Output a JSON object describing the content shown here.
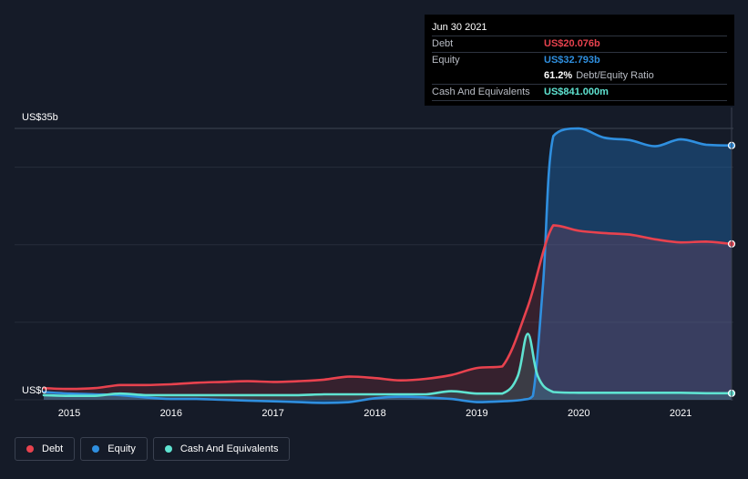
{
  "tooltip": {
    "date": "Jun 30 2021",
    "debt_label": "Debt",
    "debt_value": "US$20.076b",
    "equity_label": "Equity",
    "equity_value": "US$32.793b",
    "ratio_value": "61.2%",
    "ratio_label": "Debt/Equity Ratio",
    "cash_label": "Cash And Equivalents",
    "cash_value": "US$841.000m"
  },
  "legend": [
    {
      "label": "Debt",
      "color": "#e8424e"
    },
    {
      "label": "Equity",
      "color": "#2f8fdf"
    },
    {
      "label": "Cash And Equivalents",
      "color": "#5fe3d1"
    }
  ],
  "chart_data": {
    "type": "area",
    "y_axis_labels": [
      "US$35b",
      "US$0"
    ],
    "ylim": [
      0,
      35
    ],
    "xlim": [
      2014.75,
      2021.5
    ],
    "x_ticks": [
      {
        "label": "2015",
        "value": 2015
      },
      {
        "label": "2016",
        "value": 2016
      },
      {
        "label": "2017",
        "value": 2017
      },
      {
        "label": "2018",
        "value": 2018
      },
      {
        "label": "2019",
        "value": 2019
      },
      {
        "label": "2020",
        "value": 2020
      },
      {
        "label": "2021",
        "value": 2021
      }
    ],
    "gridlines": [
      0,
      10,
      20,
      30,
      35
    ],
    "series": [
      {
        "name": "Debt",
        "color": "#e8424e",
        "x": [
          2014.75,
          2015.0,
          2015.25,
          2015.5,
          2015.75,
          2016.0,
          2016.25,
          2016.5,
          2016.75,
          2017.0,
          2017.25,
          2017.5,
          2017.75,
          2018.0,
          2018.25,
          2018.5,
          2018.75,
          2019.0,
          2019.25,
          2019.5,
          2019.75,
          2020.0,
          2020.25,
          2020.5,
          2020.75,
          2021.0,
          2021.25,
          2021.5
        ],
        "values": [
          1.5,
          1.4,
          1.5,
          1.9,
          1.9,
          2.0,
          2.2,
          2.3,
          2.4,
          2.3,
          2.4,
          2.6,
          3.0,
          2.8,
          2.5,
          2.7,
          3.2,
          4.1,
          4.3,
          12.0,
          22.5,
          21.8,
          21.5,
          21.3,
          20.7,
          20.3,
          20.4,
          20.1
        ]
      },
      {
        "name": "Equity",
        "color": "#2f8fdf",
        "x": [
          2014.75,
          2015.0,
          2015.25,
          2015.5,
          2015.75,
          2016.0,
          2016.25,
          2016.5,
          2016.75,
          2017.0,
          2017.25,
          2017.5,
          2017.75,
          2018.0,
          2018.25,
          2018.5,
          2018.75,
          2019.0,
          2019.25,
          2019.45,
          2019.55,
          2019.65,
          2019.75,
          2020.0,
          2020.25,
          2020.5,
          2020.75,
          2021.0,
          2021.25,
          2021.5
        ],
        "values": [
          1.0,
          0.8,
          0.7,
          0.6,
          0.3,
          0.1,
          0.1,
          0.0,
          -0.1,
          -0.2,
          -0.3,
          -0.4,
          -0.3,
          0.2,
          0.4,
          0.3,
          0.1,
          -0.3,
          -0.2,
          0.0,
          0.5,
          15.0,
          34.0,
          35.0,
          33.8,
          33.5,
          32.7,
          33.6,
          32.9,
          32.8
        ]
      },
      {
        "name": "Cash And Equivalents",
        "color": "#5fe3d1",
        "x": [
          2014.75,
          2015.0,
          2015.25,
          2015.5,
          2015.75,
          2016.0,
          2016.25,
          2016.5,
          2016.75,
          2017.0,
          2017.25,
          2017.5,
          2017.75,
          2018.0,
          2018.25,
          2018.5,
          2018.75,
          2019.0,
          2019.25,
          2019.4,
          2019.5,
          2019.6,
          2019.75,
          2020.0,
          2020.25,
          2020.5,
          2020.75,
          2021.0,
          2021.25,
          2021.5
        ],
        "values": [
          0.6,
          0.5,
          0.5,
          0.8,
          0.6,
          0.6,
          0.6,
          0.6,
          0.6,
          0.6,
          0.6,
          0.7,
          0.7,
          0.7,
          0.7,
          0.7,
          1.1,
          0.8,
          0.8,
          3.0,
          8.5,
          3.0,
          1.0,
          0.9,
          0.9,
          0.9,
          0.9,
          0.9,
          0.85,
          0.84
        ]
      }
    ]
  }
}
